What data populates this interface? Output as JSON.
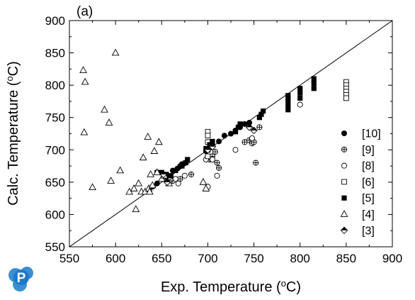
{
  "chart_data": {
    "type": "scatter",
    "panel_label": "(a)",
    "xlabel": "Exp. Temperature (",
    "ylabel": "Calc. Temperature (",
    "unit_super": "o",
    "unit_suffix": "C)",
    "xlim": [
      550,
      900
    ],
    "ylim": [
      550,
      900
    ],
    "xticks": [
      550,
      600,
      650,
      700,
      750,
      800,
      850,
      900
    ],
    "yticks": [
      550,
      600,
      650,
      700,
      750,
      800,
      850,
      900
    ],
    "reference_line": [
      [
        550,
        550
      ],
      [
        900,
        900
      ]
    ],
    "logo_letter": "P",
    "series": [
      {
        "name": "[10]",
        "marker": "filled-circle",
        "points": [
          [
            640,
            643
          ],
          [
            645,
            648
          ],
          [
            655,
            658
          ],
          [
            662,
            668
          ],
          [
            667,
            671
          ],
          [
            670,
            675
          ],
          [
            672,
            678
          ],
          [
            676,
            680
          ],
          [
            698,
            698
          ],
          [
            702,
            703
          ],
          [
            705,
            707
          ],
          [
            712,
            713
          ],
          [
            718,
            722
          ],
          [
            725,
            725
          ],
          [
            730,
            730
          ],
          [
            735,
            735
          ],
          [
            740,
            740
          ],
          [
            745,
            742
          ]
        ]
      },
      {
        "name": "[9]",
        "marker": "circle-plus",
        "points": [
          [
            662,
            652
          ],
          [
            670,
            655
          ],
          [
            682,
            662
          ],
          [
            700,
            690
          ],
          [
            702,
            685
          ],
          [
            705,
            690
          ],
          [
            708,
            697
          ],
          [
            710,
            680
          ],
          [
            712,
            672
          ],
          [
            740,
            712
          ],
          [
            745,
            715
          ],
          [
            748,
            710
          ],
          [
            750,
            712
          ],
          [
            752,
            680
          ],
          [
            756,
            735
          ]
        ]
      },
      {
        "name": "[8]",
        "marker": "open-circle",
        "points": [
          [
            658,
            650
          ],
          [
            665,
            655
          ],
          [
            668,
            648
          ],
          [
            675,
            660
          ],
          [
            698,
            685
          ],
          [
            700,
            643
          ],
          [
            705,
            685
          ],
          [
            710,
            660
          ],
          [
            730,
            700
          ],
          [
            748,
            718
          ],
          [
            800,
            770
          ]
        ]
      },
      {
        "name": "[6]",
        "marker": "open-square",
        "points": [
          [
            700,
            728
          ],
          [
            700,
            722
          ],
          [
            700,
            712
          ],
          [
            700,
            700
          ],
          [
            700,
            690
          ],
          [
            850,
            805
          ],
          [
            850,
            800
          ],
          [
            850,
            795
          ],
          [
            850,
            790
          ],
          [
            850,
            785
          ],
          [
            850,
            780
          ]
        ]
      },
      {
        "name": "[5]",
        "marker": "filled-square",
        "points": [
          [
            645,
            665
          ],
          [
            650,
            665
          ],
          [
            655,
            662
          ],
          [
            660,
            660
          ],
          [
            665,
            668
          ],
          [
            672,
            675
          ],
          [
            676,
            680
          ],
          [
            678,
            685
          ],
          [
            698,
            702
          ],
          [
            702,
            708
          ],
          [
            705,
            713
          ],
          [
            730,
            728
          ],
          [
            733,
            735
          ],
          [
            735,
            740
          ],
          [
            756,
            750
          ],
          [
            758,
            755
          ],
          [
            760,
            760
          ],
          [
            787,
            762
          ],
          [
            787,
            768
          ],
          [
            787,
            775
          ],
          [
            787,
            780
          ],
          [
            787,
            784
          ],
          [
            800,
            780
          ],
          [
            800,
            788
          ],
          [
            800,
            795
          ],
          [
            815,
            795
          ],
          [
            815,
            803
          ],
          [
            815,
            810
          ]
        ]
      },
      {
        "name": "[4]",
        "marker": "open-triangle",
        "points": [
          [
            565,
            823
          ],
          [
            567,
            805
          ],
          [
            566,
            727
          ],
          [
            575,
            642
          ],
          [
            588,
            762
          ],
          [
            593,
            742
          ],
          [
            595,
            652
          ],
          [
            600,
            850
          ],
          [
            605,
            668
          ],
          [
            615,
            635
          ],
          [
            620,
            640
          ],
          [
            622,
            608
          ],
          [
            625,
            648
          ],
          [
            628,
            635
          ],
          [
            630,
            688
          ],
          [
            632,
            635
          ],
          [
            635,
            720
          ],
          [
            636,
            640
          ],
          [
            637,
            635
          ],
          [
            638,
            662
          ],
          [
            640,
            645
          ],
          [
            642,
            698
          ],
          [
            645,
            665
          ],
          [
            647,
            712
          ],
          [
            650,
            655
          ],
          [
            653,
            660
          ],
          [
            658,
            648
          ],
          [
            695,
            650
          ],
          [
            698,
            640
          ]
        ]
      },
      {
        "name": "[3]",
        "marker": "half-diamond",
        "points": [
          [
            652,
            662
          ],
          [
            656,
            650
          ],
          [
            700,
            700
          ],
          [
            705,
            705
          ],
          [
            745,
            735
          ],
          [
            750,
            730
          ]
        ]
      }
    ]
  }
}
